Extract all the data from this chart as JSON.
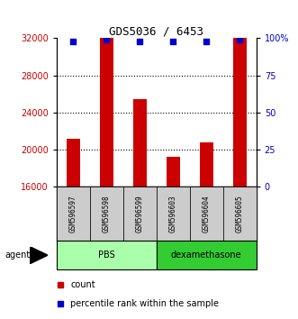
{
  "title": "GDS5036 / 6453",
  "samples": [
    "GSM596597",
    "GSM596598",
    "GSM596599",
    "GSM596603",
    "GSM596604",
    "GSM596605"
  ],
  "counts": [
    21200,
    32000,
    25400,
    19200,
    20800,
    32000
  ],
  "percentile_ranks": [
    98,
    99,
    98,
    98,
    98,
    99
  ],
  "ylim_left": [
    16000,
    32000
  ],
  "yticks_left": [
    16000,
    20000,
    24000,
    28000,
    32000
  ],
  "yticks_right": [
    0,
    25,
    50,
    75,
    100
  ],
  "ylim_right": [
    0,
    100
  ],
  "bar_color": "#cc0000",
  "dot_color": "#0000cc",
  "groups": [
    {
      "label": "PBS",
      "indices": [
        0,
        1,
        2
      ],
      "color": "#aaffaa"
    },
    {
      "label": "dexamethasone",
      "indices": [
        3,
        4,
        5
      ],
      "color": "#33cc33"
    }
  ],
  "agent_label": "agent",
  "legend_count_label": "count",
  "legend_pct_label": "percentile rank within the sample",
  "sample_box_color": "#cccccc",
  "bar_width": 0.4
}
